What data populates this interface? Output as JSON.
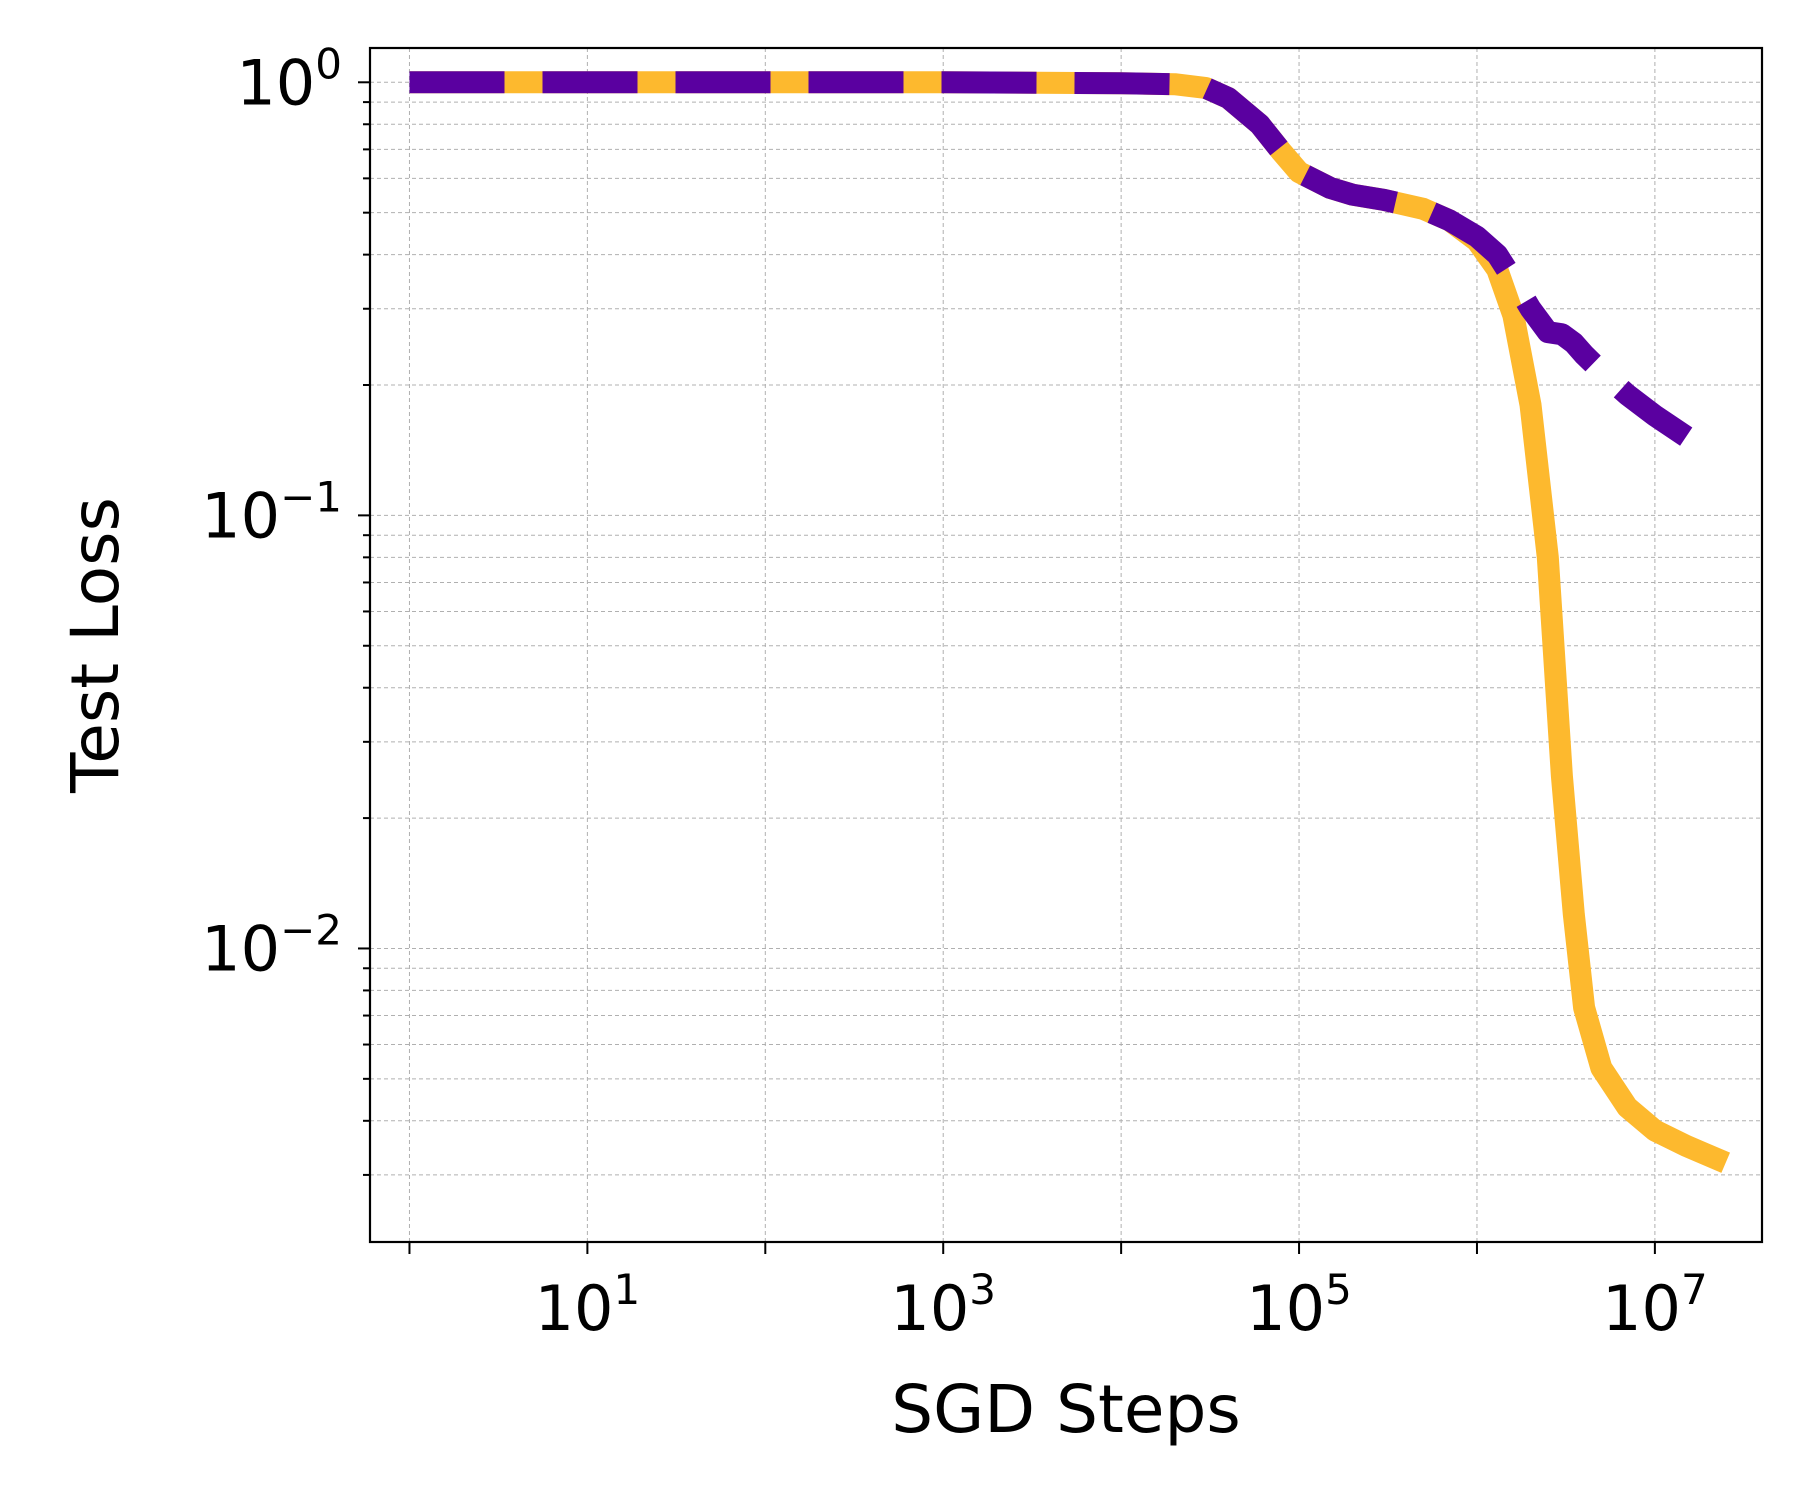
{
  "chart_data": {
    "type": "line",
    "title": "",
    "xlabel": "SGD Steps",
    "ylabel": "Test Loss",
    "xscale": "log",
    "yscale": "log",
    "xlim": [
      0.6,
      40000000
    ],
    "ylim": [
      0.0021,
      1.2
    ],
    "grid": true,
    "legend": "none",
    "x_ticks": [
      {
        "value": 10,
        "base": "10",
        "exp": "1"
      },
      {
        "value": 1000,
        "base": "10",
        "exp": "3"
      },
      {
        "value": 100000,
        "base": "10",
        "exp": "5"
      },
      {
        "value": 10000000,
        "base": "10",
        "exp": "7"
      }
    ],
    "y_ticks": [
      {
        "value": 1,
        "base": "10",
        "exp": "0"
      },
      {
        "value": 0.1,
        "base": "10",
        "exp": "−1"
      },
      {
        "value": 0.01,
        "base": "10",
        "exp": "−2"
      }
    ],
    "series": [
      {
        "color": "#FDB92E",
        "style": "solid",
        "x": [
          1,
          10,
          100,
          1000,
          10000,
          20000,
          30000,
          40000,
          60000,
          80000,
          100000,
          150000,
          200000,
          300000,
          500000,
          700000,
          1000000,
          1300000,
          1600000,
          2000000,
          2500000,
          3000000,
          3500000,
          4000000,
          5000000,
          7000000,
          10000000,
          15000000,
          25000000
        ],
        "y": [
          1.0,
          1.0,
          1.0,
          1.0,
          0.995,
          0.99,
          0.97,
          0.92,
          0.8,
          0.69,
          0.62,
          0.57,
          0.55,
          0.535,
          0.51,
          0.48,
          0.43,
          0.37,
          0.29,
          0.18,
          0.08,
          0.025,
          0.012,
          0.0073,
          0.0053,
          0.0043,
          0.0038,
          0.0035,
          0.0032
        ]
      },
      {
        "color": "#5A00A0",
        "style": "dashed",
        "x": [
          1,
          10,
          100,
          1000,
          10000,
          20000,
          30000,
          40000,
          60000,
          80000,
          100000,
          150000,
          200000,
          300000,
          500000,
          700000,
          1000000,
          1300000,
          1600000,
          2000000,
          2500000,
          3000000,
          3500000,
          4000000,
          5000000,
          7000000,
          10000000,
          15000000
        ],
        "y": [
          1.0,
          1.0,
          1.0,
          1.0,
          0.995,
          0.99,
          0.97,
          0.92,
          0.8,
          0.69,
          0.62,
          0.57,
          0.55,
          0.535,
          0.51,
          0.48,
          0.44,
          0.4,
          0.35,
          0.3,
          0.265,
          0.262,
          0.25,
          0.235,
          0.215,
          0.19,
          0.17,
          0.152
        ]
      }
    ]
  }
}
